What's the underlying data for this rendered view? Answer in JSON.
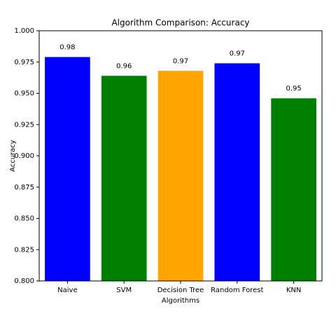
{
  "chart_data": {
    "type": "bar",
    "title": "Algorithm Comparison: Accuracy",
    "xlabel": "Algorithms",
    "ylabel": "Accuracy",
    "categories": [
      "Naive",
      "SVM",
      "Decision Tree",
      "Random Forest",
      "KNN"
    ],
    "values": [
      0.979,
      0.964,
      0.968,
      0.974,
      0.946
    ],
    "value_labels": [
      "0.98",
      "0.96",
      "0.97",
      "0.97",
      "0.95"
    ],
    "colors": [
      "blue",
      "green",
      "orange",
      "blue",
      "green"
    ],
    "ylim": [
      0.8,
      1.0
    ],
    "yticks": [
      {
        "value": 0.8,
        "label": "0.800"
      },
      {
        "value": 0.825,
        "label": "0.825"
      },
      {
        "value": 0.85,
        "label": "0.850"
      },
      {
        "value": 0.875,
        "label": "0.875"
      },
      {
        "value": 0.9,
        "label": "0.900"
      },
      {
        "value": 0.925,
        "label": "0.925"
      },
      {
        "value": 0.95,
        "label": "0.950"
      },
      {
        "value": 0.975,
        "label": "0.975"
      },
      {
        "value": 1.0,
        "label": "1.000"
      }
    ],
    "grid": false
  }
}
